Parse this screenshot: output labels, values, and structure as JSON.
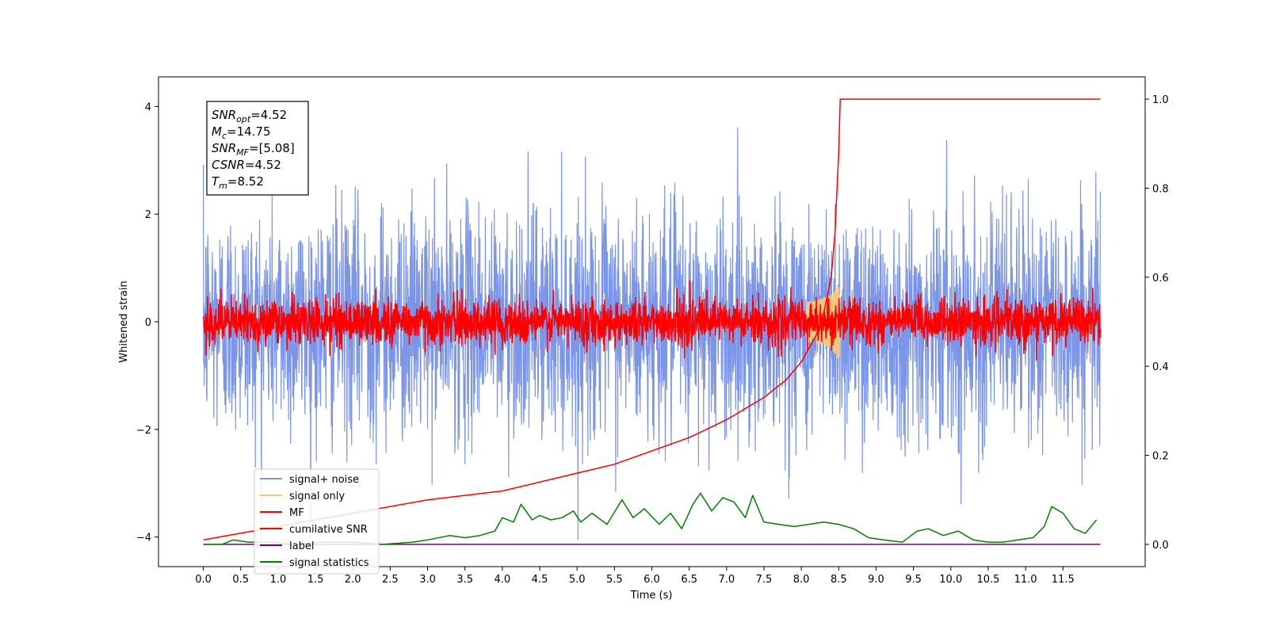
{
  "chart_data": {
    "type": "line",
    "xlabel": "Time (s)",
    "ylabel": "Whitened strain",
    "xlim": [
      -0.6,
      12.6
    ],
    "ylim": [
      -4.55,
      4.55
    ],
    "ylim_right": [
      -0.05,
      1.05
    ],
    "x_ticks": [
      "0.0",
      "0.5",
      "1.0",
      "1.5",
      "2.0",
      "2.5",
      "3.0",
      "3.5",
      "4.0",
      "4.5",
      "5.0",
      "5.5",
      "6.0",
      "6.5",
      "7.0",
      "7.5",
      "8.0",
      "8.5",
      "9.0",
      "9.5",
      "10.0",
      "10.5",
      "11.0",
      "11.5"
    ],
    "y_ticks_left": [
      "−4",
      "−2",
      "0",
      "2",
      "4"
    ],
    "y_ticks_right": [
      "0.0",
      "0.2",
      "0.4",
      "0.6",
      "0.8",
      "1.0"
    ],
    "grid": false,
    "legend_position": "lower-left",
    "series": [
      {
        "name": "signal+ noise",
        "color": "#7b95e8",
        "axis": "left",
        "kind": "noise",
        "range": [
          0,
          12
        ],
        "sigma": 1.0
      },
      {
        "name": "signal only",
        "color": "#f5c77e",
        "axis": "left",
        "kind": "chirp",
        "merger_time": 8.52,
        "peak": 0.8
      },
      {
        "name": "MF",
        "color": "#ff0000",
        "axis": "left",
        "kind": "noise",
        "range": [
          0,
          12
        ],
        "sigma": 0.2
      },
      {
        "name": "cumilative SNR",
        "color": "#ff0000",
        "axis": "right",
        "kind": "cumulative",
        "x": [
          0.0,
          1.0,
          2.0,
          3.0,
          4.0,
          5.0,
          5.5,
          6.0,
          6.5,
          7.0,
          7.5,
          7.8,
          8.0,
          8.2,
          8.3,
          8.4,
          8.45,
          8.5,
          8.52,
          12.0
        ],
        "y": [
          0.01,
          0.04,
          0.07,
          0.1,
          0.12,
          0.16,
          0.18,
          0.21,
          0.24,
          0.28,
          0.33,
          0.37,
          0.41,
          0.47,
          0.52,
          0.6,
          0.7,
          0.88,
          1.0,
          1.0
        ]
      },
      {
        "name": "label",
        "color": "#6a0a6a",
        "axis": "right",
        "kind": "flat",
        "x": [
          0.0,
          12.0
        ],
        "y": [
          0.0,
          0.0
        ]
      },
      {
        "name": "signal statistics",
        "color": "#008000",
        "axis": "right",
        "kind": "line",
        "x": [
          0.0,
          0.25,
          0.4,
          0.6,
          0.9,
          1.2,
          1.6,
          2.0,
          2.4,
          2.8,
          3.0,
          3.3,
          3.5,
          3.7,
          3.9,
          4.0,
          4.15,
          4.25,
          4.4,
          4.5,
          4.65,
          4.8,
          4.95,
          5.05,
          5.2,
          5.4,
          5.6,
          5.75,
          5.9,
          6.1,
          6.25,
          6.4,
          6.55,
          6.65,
          6.8,
          6.95,
          7.1,
          7.25,
          7.35,
          7.5,
          7.7,
          7.9,
          8.1,
          8.3,
          8.5,
          8.7,
          8.9,
          9.1,
          9.35,
          9.55,
          9.7,
          9.9,
          10.1,
          10.3,
          10.5,
          10.7,
          10.9,
          11.1,
          11.25,
          11.35,
          11.5,
          11.65,
          11.8,
          11.95
        ],
        "y": [
          0.0,
          0.0,
          0.01,
          0.005,
          0.005,
          0.0,
          0.005,
          0.005,
          0.0,
          0.005,
          0.01,
          0.02,
          0.015,
          0.02,
          0.03,
          0.06,
          0.05,
          0.09,
          0.055,
          0.065,
          0.055,
          0.06,
          0.075,
          0.05,
          0.07,
          0.045,
          0.1,
          0.06,
          0.08,
          0.045,
          0.07,
          0.035,
          0.09,
          0.115,
          0.075,
          0.105,
          0.095,
          0.06,
          0.11,
          0.05,
          0.045,
          0.04,
          0.045,
          0.05,
          0.045,
          0.035,
          0.015,
          0.01,
          0.005,
          0.03,
          0.035,
          0.02,
          0.03,
          0.01,
          0.005,
          0.005,
          0.01,
          0.015,
          0.04,
          0.085,
          0.07,
          0.035,
          0.025,
          0.055
        ]
      }
    ],
    "annotation": {
      "lines": [
        {
          "sym": "SNR",
          "sub": "opt",
          "rest": "=4.52"
        },
        {
          "sym": "M",
          "sub": "c",
          "rest": "=14.75"
        },
        {
          "sym": "SNR",
          "sub": "MF",
          "rest": "=[5.08]"
        },
        {
          "sym": "CSNR",
          "sub": "",
          "rest": "=4.52"
        },
        {
          "sym": "T",
          "sub": "m",
          "rest": "=8.52"
        }
      ]
    }
  }
}
